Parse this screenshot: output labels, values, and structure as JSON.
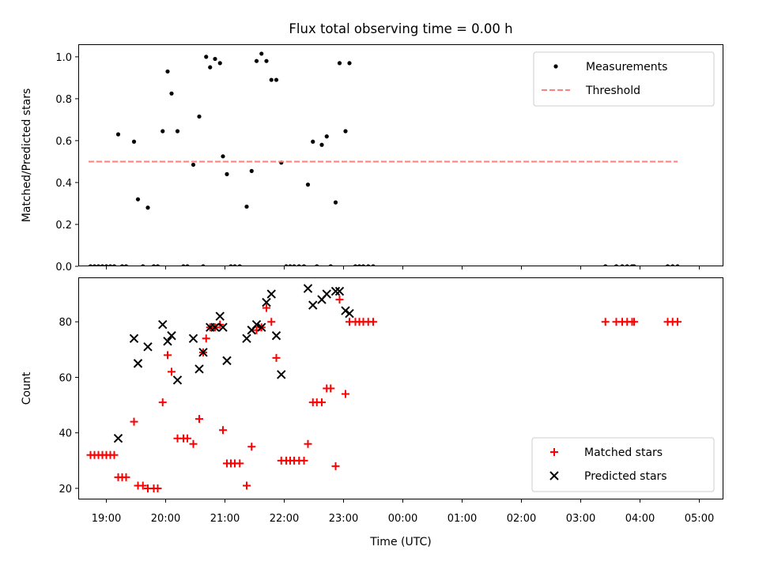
{
  "chart_data": {
    "type": "scatter",
    "title": "Flux total observing time = 0.00 h",
    "xlabel": "Time (UTC)",
    "x_ticks": [
      "19:00",
      "20:00",
      "21:00",
      "22:00",
      "23:00",
      "00:00",
      "01:00",
      "02:00",
      "03:00",
      "04:00",
      "05:00"
    ],
    "panels": [
      {
        "ylabel": "Matched/Predicted stars",
        "ylim": [
          0,
          1.06
        ],
        "y_ticks": [
          "0.0",
          "0.2",
          "0.4",
          "0.6",
          "0.8",
          "1.0"
        ],
        "legend_position": "top-right",
        "series": [
          {
            "name": "Measurements",
            "marker": "dot",
            "color": "#000000",
            "points": [
              [
                "18:44",
                0
              ],
              [
                "18:48",
                0
              ],
              [
                "18:52",
                0
              ],
              [
                "18:56",
                0
              ],
              [
                "19:00",
                0
              ],
              [
                "19:04",
                0
              ],
              [
                "19:08",
                0
              ],
              [
                "19:12",
                0.63
              ],
              [
                "19:16",
                0
              ],
              [
                "19:20",
                0
              ],
              [
                "19:28",
                0.595
              ],
              [
                "19:32",
                0.32
              ],
              [
                "19:37",
                0
              ],
              [
                "19:42",
                0.28
              ],
              [
                "19:48",
                0
              ],
              [
                "19:52",
                0
              ],
              [
                "19:57",
                0.645
              ],
              [
                "20:02",
                0.93
              ],
              [
                "20:06",
                0.825
              ],
              [
                "20:12",
                0.645
              ],
              [
                "20:18",
                0
              ],
              [
                "20:22",
                0
              ],
              [
                "20:28",
                0.485
              ],
              [
                "20:34",
                0.715
              ],
              [
                "20:38",
                0
              ],
              [
                "20:41",
                1.0
              ],
              [
                "20:45",
                0.95
              ],
              [
                "20:50",
                0.99
              ],
              [
                "20:55",
                0.97
              ],
              [
                "20:58",
                0.525
              ],
              [
                "21:02",
                0.44
              ],
              [
                "21:06",
                0
              ],
              [
                "21:10",
                0
              ],
              [
                "21:15",
                0
              ],
              [
                "21:22",
                0.285
              ],
              [
                "21:27",
                0.455
              ],
              [
                "21:32",
                0.98
              ],
              [
                "21:37",
                1.015
              ],
              [
                "21:42",
                0.98
              ],
              [
                "21:47",
                0.89
              ],
              [
                "21:52",
                0.89
              ],
              [
                "21:57",
                0.495
              ],
              [
                "22:02",
                0
              ],
              [
                "22:06",
                0
              ],
              [
                "22:10",
                0
              ],
              [
                "22:15",
                0
              ],
              [
                "22:20",
                0
              ],
              [
                "22:24",
                0.39
              ],
              [
                "22:29",
                0.595
              ],
              [
                "22:33",
                0
              ],
              [
                "22:38",
                0.58
              ],
              [
                "22:43",
                0.62
              ],
              [
                "22:47",
                0
              ],
              [
                "22:52",
                0.305
              ],
              [
                "22:56",
                0.97
              ],
              [
                "23:02",
                0.645
              ],
              [
                "23:06",
                0.97
              ],
              [
                "23:12",
                0
              ],
              [
                "23:16",
                0
              ],
              [
                "23:20",
                0
              ],
              [
                "23:25",
                0
              ],
              [
                "23:30",
                0
              ],
              [
                "03:25",
                0
              ],
              [
                "03:36",
                0
              ],
              [
                "03:42",
                0
              ],
              [
                "03:47",
                0
              ],
              [
                "03:52",
                0
              ],
              [
                "03:54",
                0
              ],
              [
                "04:28",
                0
              ],
              [
                "04:33",
                0
              ],
              [
                "04:38",
                0
              ]
            ]
          },
          {
            "name": "Threshold",
            "marker": "dashed-line",
            "color": "#ff7f7f",
            "points": [
              [
                "18:42",
                0.5
              ],
              [
                "04:38",
                0.5
              ]
            ]
          }
        ]
      },
      {
        "ylabel": "Count",
        "ylim": [
          16,
          96
        ],
        "y_ticks": [
          "20",
          "40",
          "60",
          "80"
        ],
        "legend_position": "bottom-right",
        "series": [
          {
            "name": "Matched stars",
            "marker": "plus",
            "color": "#ff0000",
            "points": [
              [
                "18:44",
                32
              ],
              [
                "18:48",
                32
              ],
              [
                "18:52",
                32
              ],
              [
                "18:56",
                32
              ],
              [
                "19:00",
                32
              ],
              [
                "19:04",
                32
              ],
              [
                "19:08",
                32
              ],
              [
                "19:12",
                24
              ],
              [
                "19:16",
                24
              ],
              [
                "19:20",
                24
              ],
              [
                "19:28",
                44
              ],
              [
                "19:32",
                21
              ],
              [
                "19:37",
                21
              ],
              [
                "19:42",
                20
              ],
              [
                "19:48",
                20
              ],
              [
                "19:52",
                20
              ],
              [
                "19:57",
                51
              ],
              [
                "20:02",
                68
              ],
              [
                "20:06",
                62
              ],
              [
                "20:12",
                38
              ],
              [
                "20:18",
                38
              ],
              [
                "20:22",
                38
              ],
              [
                "20:28",
                36
              ],
              [
                "20:34",
                45
              ],
              [
                "20:38",
                69
              ],
              [
                "20:41",
                74
              ],
              [
                "20:45",
                78
              ],
              [
                "20:50",
                78
              ],
              [
                "20:55",
                79
              ],
              [
                "20:58",
                41
              ],
              [
                "21:02",
                29
              ],
              [
                "21:06",
                29
              ],
              [
                "21:10",
                29
              ],
              [
                "21:15",
                29
              ],
              [
                "21:22",
                21
              ],
              [
                "21:27",
                35
              ],
              [
                "21:32",
                77
              ],
              [
                "21:37",
                78
              ],
              [
                "21:42",
                85
              ],
              [
                "21:47",
                80
              ],
              [
                "21:52",
                67
              ],
              [
                "21:57",
                30
              ],
              [
                "22:02",
                30
              ],
              [
                "22:06",
                30
              ],
              [
                "22:10",
                30
              ],
              [
                "22:15",
                30
              ],
              [
                "22:20",
                30
              ],
              [
                "22:24",
                36
              ],
              [
                "22:29",
                51
              ],
              [
                "22:33",
                51
              ],
              [
                "22:38",
                51
              ],
              [
                "22:43",
                56
              ],
              [
                "22:47",
                56
              ],
              [
                "22:52",
                28
              ],
              [
                "22:56",
                88
              ],
              [
                "23:02",
                54
              ],
              [
                "23:06",
                80
              ],
              [
                "23:12",
                80
              ],
              [
                "23:16",
                80
              ],
              [
                "23:20",
                80
              ],
              [
                "23:25",
                80
              ],
              [
                "23:30",
                80
              ],
              [
                "03:25",
                80
              ],
              [
                "03:36",
                80
              ],
              [
                "03:42",
                80
              ],
              [
                "03:47",
                80
              ],
              [
                "03:52",
                80
              ],
              [
                "03:54",
                80
              ],
              [
                "04:28",
                80
              ],
              [
                "04:33",
                80
              ],
              [
                "04:38",
                80
              ]
            ]
          },
          {
            "name": "Predicted stars",
            "marker": "x",
            "color": "#000000",
            "points": [
              [
                "19:12",
                38
              ],
              [
                "19:28",
                74
              ],
              [
                "19:32",
                65
              ],
              [
                "19:42",
                71
              ],
              [
                "19:57",
                79
              ],
              [
                "20:02",
                73
              ],
              [
                "20:06",
                75
              ],
              [
                "20:12",
                59
              ],
              [
                "20:28",
                74
              ],
              [
                "20:34",
                63
              ],
              [
                "20:38",
                69
              ],
              [
                "20:45",
                78
              ],
              [
                "20:50",
                78
              ],
              [
                "20:55",
                82
              ],
              [
                "20:58",
                78
              ],
              [
                "21:02",
                66
              ],
              [
                "21:22",
                74
              ],
              [
                "21:27",
                77
              ],
              [
                "21:32",
                79
              ],
              [
                "21:37",
                78
              ],
              [
                "21:42",
                87
              ],
              [
                "21:47",
                90
              ],
              [
                "21:52",
                75
              ],
              [
                "21:57",
                61
              ],
              [
                "22:24",
                92
              ],
              [
                "22:29",
                86
              ],
              [
                "22:38",
                88
              ],
              [
                "22:43",
                90
              ],
              [
                "22:52",
                91
              ],
              [
                "22:56",
                91
              ],
              [
                "23:02",
                84
              ],
              [
                "23:06",
                83
              ]
            ]
          }
        ]
      }
    ]
  }
}
